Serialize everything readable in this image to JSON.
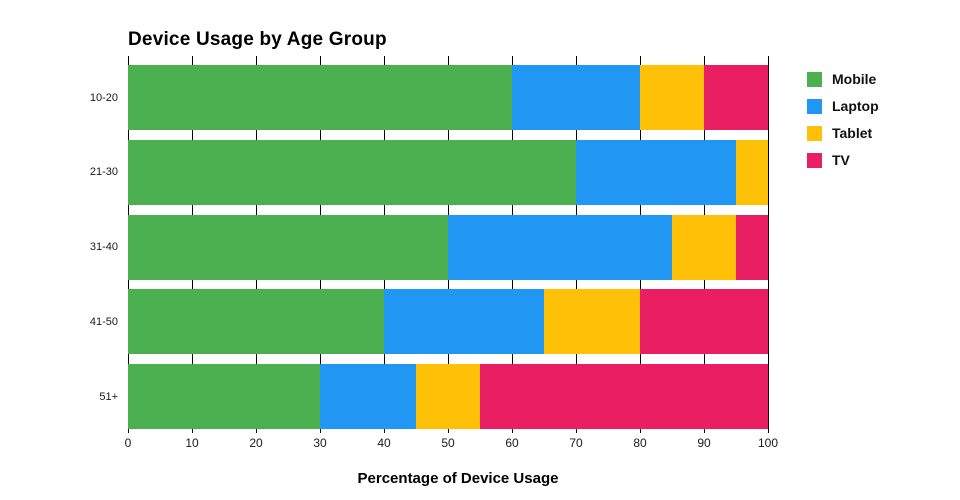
{
  "chart_data": {
    "type": "bar",
    "orientation": "horizontal",
    "stacked": true,
    "title": "Device Usage by Age Group",
    "xlabel": "Percentage of Device Usage",
    "categories": [
      "10-20",
      "21-30",
      "31-40",
      "41-50",
      "51+"
    ],
    "series": [
      {
        "name": "Mobile",
        "color": "#4CAF50",
        "values": [
          60,
          70,
          50,
          40,
          30
        ]
      },
      {
        "name": "Laptop",
        "color": "#2196F3",
        "values": [
          20,
          25,
          35,
          25,
          15
        ]
      },
      {
        "name": "Tablet",
        "color": "#FFC107",
        "values": [
          10,
          5,
          10,
          15,
          10
        ]
      },
      {
        "name": "TV",
        "color": "#E91E63",
        "values": [
          10,
          0,
          5,
          20,
          45
        ]
      }
    ],
    "x_ticks": [
      0,
      10,
      20,
      30,
      40,
      50,
      60,
      70,
      80,
      90,
      100
    ],
    "xlim": [
      0,
      100
    ],
    "grid": true,
    "gridline_color": "#000000",
    "background_color": "#ffffff",
    "legend_position": "right"
  }
}
